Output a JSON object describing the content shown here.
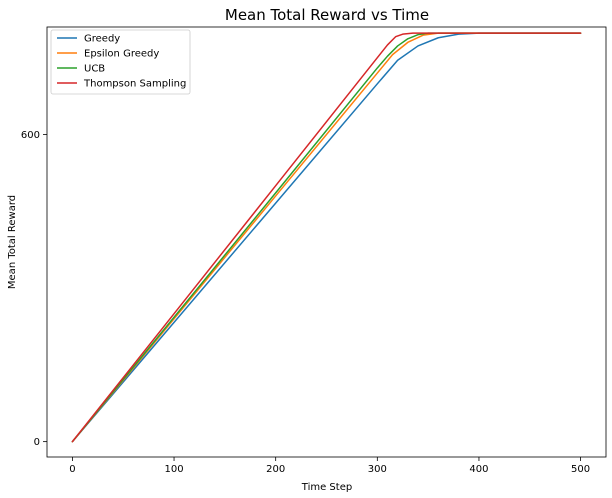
{
  "chart_data": {
    "type": "line",
    "title": "Mean Total Reward vs Time",
    "xlabel": "Time Step",
    "ylabel": "Mean Total Reward",
    "xlim": [
      -25,
      525
    ],
    "ylim": [
      -30,
      810
    ],
    "xticks": [
      0,
      100,
      200,
      300,
      400,
      500
    ],
    "yticks": [
      0,
      600
    ],
    "grid": false,
    "legend": "top-left",
    "series": [
      {
        "name": "Greedy",
        "color": "#1f77b4",
        "points": [
          [
            0,
            0
          ],
          [
            100,
            233
          ],
          [
            200,
            466
          ],
          [
            300,
            699
          ],
          [
            320,
            745
          ],
          [
            340,
            773
          ],
          [
            360,
            789
          ],
          [
            380,
            796
          ],
          [
            400,
            798
          ],
          [
            500,
            798
          ]
        ]
      },
      {
        "name": "Epsilon Greedy",
        "color": "#ff7f0e",
        "points": [
          [
            0,
            0
          ],
          [
            100,
            240
          ],
          [
            200,
            480
          ],
          [
            300,
            720
          ],
          [
            315,
            756
          ],
          [
            330,
            780
          ],
          [
            345,
            794
          ],
          [
            360,
            798
          ],
          [
            500,
            798
          ]
        ]
      },
      {
        "name": "UCB",
        "color": "#2ca02c",
        "points": [
          [
            0,
            0
          ],
          [
            100,
            243
          ],
          [
            200,
            486
          ],
          [
            300,
            730
          ],
          [
            310,
            753
          ],
          [
            320,
            773
          ],
          [
            330,
            787
          ],
          [
            340,
            795
          ],
          [
            350,
            798
          ],
          [
            500,
            798
          ]
        ]
      },
      {
        "name": "Thompson Sampling",
        "color": "#d62728",
        "points": [
          [
            0,
            0
          ],
          [
            100,
            250
          ],
          [
            200,
            500
          ],
          [
            300,
            750
          ],
          [
            310,
            775
          ],
          [
            318,
            791
          ],
          [
            325,
            796
          ],
          [
            335,
            798
          ],
          [
            500,
            798
          ]
        ]
      }
    ]
  }
}
